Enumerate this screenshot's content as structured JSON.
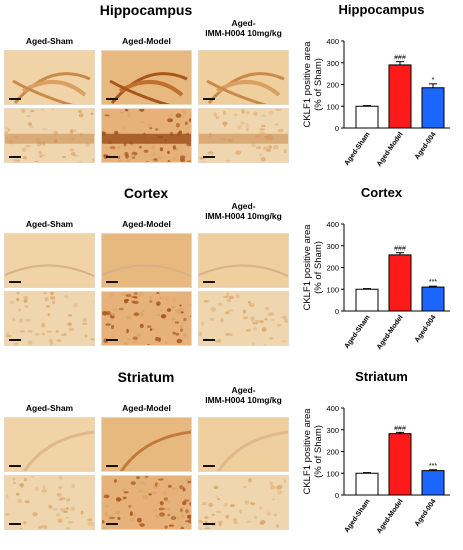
{
  "sections": [
    {
      "key": "hippocampus",
      "title": "Hippocampus",
      "col_labels": [
        "Aged-Sham",
        "Aged-Model",
        "Aged-\nIMM-H004 10mg/kg"
      ]
    },
    {
      "key": "cortex",
      "title": "Cortex",
      "col_labels": [
        "Aged-Sham",
        "Aged-Model",
        "Aged-\nIMM-H004 10mg/kg"
      ]
    },
    {
      "key": "striatum",
      "title": "Striatum",
      "col_labels": [
        "Aged-Sham",
        "Aged-Model",
        "Aged-\nIMM-H004 10mg/kg"
      ]
    }
  ],
  "colors": {
    "sham": "#ffffff",
    "model": "#ff1a1a",
    "treated": "#1a66ff",
    "stain_light": "#f2dcb5",
    "stain_mid": "#dba66a",
    "stain_dark": "#a8561c"
  },
  "chart_data": [
    {
      "type": "bar",
      "title": "Hippocampus",
      "ylabel": "CKLF1 positive area\n(% of Sham)",
      "categories": [
        "Aged-Sham",
        "Aged-Model",
        "Aged-004"
      ],
      "values": [
        100,
        290,
        185
      ],
      "errors": [
        3,
        15,
        18
      ],
      "annotations": [
        "",
        "###",
        "*"
      ],
      "ylim": [
        0,
        400
      ],
      "yticks": [
        0,
        100,
        200,
        300,
        400
      ]
    },
    {
      "type": "bar",
      "title": "Cortex",
      "ylabel": "CKLF1 positive area\n(% of Sham)",
      "categories": [
        "Aged-Sham",
        "Aged-Model",
        "Aged-004"
      ],
      "values": [
        100,
        258,
        110
      ],
      "errors": [
        3,
        10,
        4
      ],
      "annotations": [
        "",
        "###",
        "***"
      ],
      "ylim": [
        0,
        400
      ],
      "yticks": [
        0,
        100,
        200,
        300,
        400
      ]
    },
    {
      "type": "bar",
      "title": "Striatum",
      "ylabel": "CKLF1 positive area\n(% of Sham)",
      "categories": [
        "Aged-Sham",
        "Aged-Model",
        "Aged-004"
      ],
      "values": [
        100,
        282,
        112
      ],
      "errors": [
        3,
        6,
        4
      ],
      "annotations": [
        "",
        "###",
        "***"
      ],
      "ylim": [
        0,
        400
      ],
      "yticks": [
        0,
        100,
        200,
        300,
        400
      ]
    }
  ]
}
